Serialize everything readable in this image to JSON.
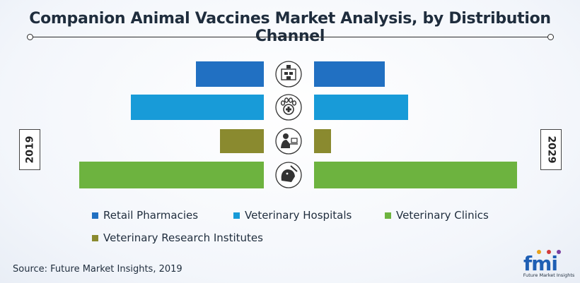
{
  "title": "Companion Animal Vaccines Market Analysis, by Distribution Channel",
  "source": "Source: Future Market Insights, 2019",
  "years": {
    "left": "2019",
    "right": "2029"
  },
  "logo": {
    "mark": "fmi",
    "text": "Future Market Insights"
  },
  "chart_data": {
    "type": "bar",
    "orientation": "horizontal-butterfly",
    "categories": [
      "Retail Pharmacies",
      "Veterinary Hospitals",
      "Veterinary Research Institutes",
      "Veterinary Clinics"
    ],
    "icons": [
      "pharmacy-icon",
      "paw-medical-icon",
      "researcher-icon",
      "vet-dog-icon"
    ],
    "colors": [
      "#2170c2",
      "#189bd8",
      "#8a8a2f",
      "#6db33f"
    ],
    "series": [
      {
        "name": "2019",
        "values": [
          96,
          188,
          62,
          261
        ]
      },
      {
        "name": "2029",
        "values": [
          100,
          133,
          24,
          287
        ]
      }
    ],
    "unit": "relative bar length (no axis scale shown)",
    "legend": {
      "position": "bottom",
      "order": [
        "Retail Pharmacies",
        "Veterinary Hospitals",
        "Veterinary Clinics",
        "Veterinary Research Institutes"
      ]
    },
    "grid": false
  }
}
